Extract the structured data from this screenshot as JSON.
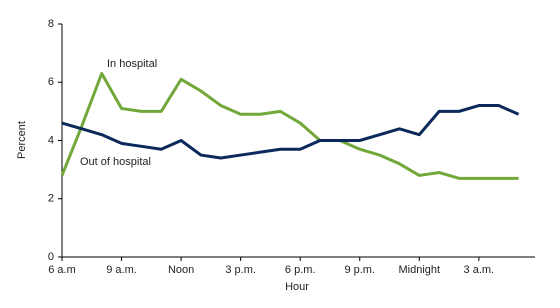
{
  "chart_data": {
    "type": "line",
    "x_label": "Hour",
    "y_label": "Percent",
    "categories": [
      "6 a.m",
      null,
      null,
      "9 a.m.",
      null,
      null,
      "Noon",
      null,
      null,
      "3 p.m.",
      null,
      null,
      "6 p.m.",
      null,
      null,
      "9 p.m.",
      null,
      null,
      "Midnight",
      null,
      null,
      "3 a.m.",
      null,
      null
    ],
    "series": [
      {
        "name": "In hospital",
        "color": "#72a83a",
        "values": [
          2.8,
          4.5,
          6.3,
          5.1,
          5.0,
          5.0,
          6.1,
          5.7,
          5.2,
          4.9,
          4.9,
          5.0,
          4.6,
          4.0,
          4.0,
          3.7,
          3.5,
          3.2,
          2.8,
          2.9,
          2.7,
          2.7,
          2.7,
          2.7
        ]
      },
      {
        "name": "Out of hospital",
        "color": "#0b2a5b",
        "values": [
          4.6,
          4.4,
          4.2,
          3.9,
          3.8,
          3.7,
          4.0,
          3.5,
          3.4,
          3.5,
          3.6,
          3.7,
          3.7,
          4.0,
          4.0,
          4.0,
          4.2,
          4.4,
          4.2,
          5.0,
          5.0,
          5.2,
          5.2,
          4.9
        ]
      }
    ],
    "ylim": [
      0,
      8
    ],
    "yticks": [
      0,
      2,
      4,
      6,
      8
    ],
    "grid": false
  }
}
